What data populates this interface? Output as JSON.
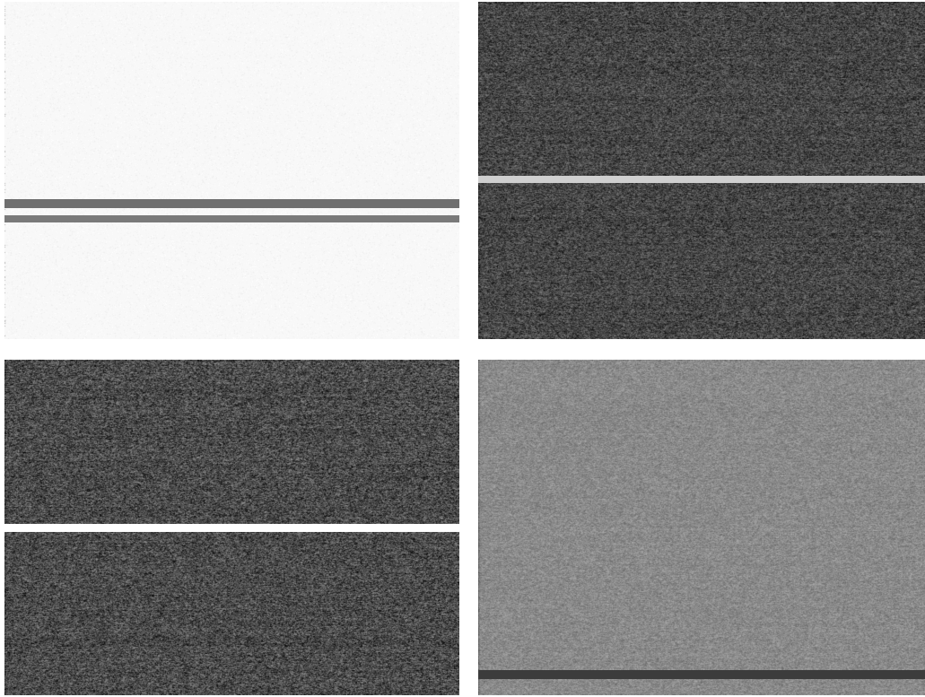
{
  "panels": {
    "top_left": {
      "base": 248,
      "spread": 18,
      "density": 0.22,
      "seed": 11,
      "line_color": "#6f6f6f",
      "line_color_2": "#7a7a7a"
    },
    "top_right": {
      "base": 70,
      "spread": 70,
      "density": 1.0,
      "seed": 23,
      "line_color": "#cfcfcf"
    },
    "bottom_left": {
      "base": 75,
      "spread": 85,
      "density": 1.0,
      "seed": 37,
      "line_color": "#ffffff"
    },
    "bottom_right": {
      "base": 138,
      "spread": 40,
      "density": 1.0,
      "seed": 51,
      "line_color": "#3c3c3c"
    }
  }
}
